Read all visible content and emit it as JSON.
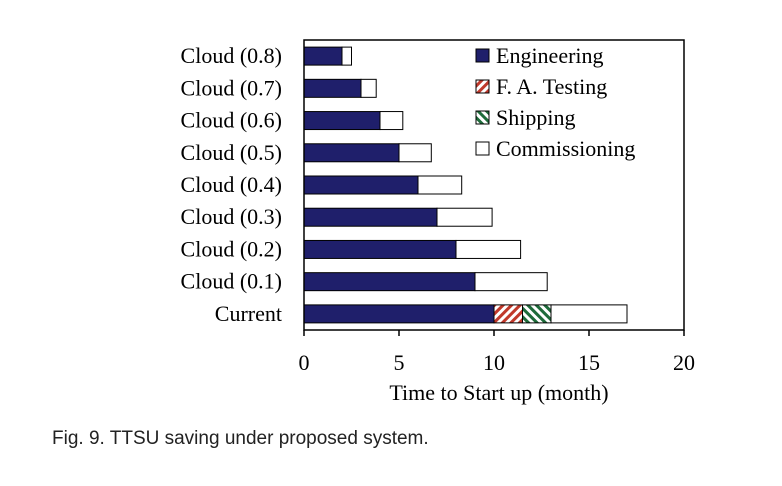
{
  "caption": "Fig. 9. TTSU saving under proposed system.",
  "chart_data": {
    "type": "bar",
    "orientation": "horizontal",
    "stacked": true,
    "xlabel": "Time to Start up (month)",
    "ylabel": "",
    "xlim": [
      0,
      20
    ],
    "xticks": [
      0,
      5,
      10,
      15,
      20
    ],
    "grid": false,
    "legend_position": "top-right",
    "categories": [
      "Cloud (0.8)",
      "Cloud (0.7)",
      "Cloud (0.6)",
      "Cloud (0.5)",
      "Cloud (0.4)",
      "Cloud (0.3)",
      "Cloud (0.2)",
      "Cloud (0.1)",
      "Current"
    ],
    "series": [
      {
        "name": "Engineering",
        "color": "#1f1f6b",
        "pattern": "solid",
        "values": [
          2,
          3,
          4,
          5,
          6,
          7,
          8,
          9,
          10
        ]
      },
      {
        "name": "F. A. Testing",
        "color": "#c0392b",
        "pattern": "hatch-red",
        "values": [
          0,
          0,
          0,
          0,
          0,
          0,
          0,
          0,
          1.5
        ]
      },
      {
        "name": "Shipping",
        "color": "#1e6b3a",
        "pattern": "hatch-green",
        "values": [
          0,
          0,
          0,
          0,
          0,
          0,
          0,
          0,
          1.5
        ]
      },
      {
        "name": "Commissioning",
        "color": "#ffffff",
        "pattern": "none",
        "values": [
          0.5,
          0.8,
          1.2,
          1.7,
          2.3,
          2.9,
          3.4,
          3.8,
          4.0
        ]
      }
    ]
  }
}
